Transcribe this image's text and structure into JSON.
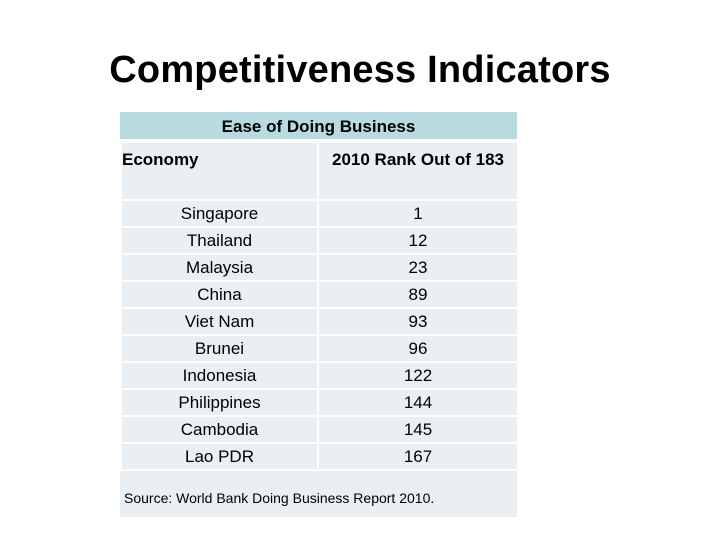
{
  "title": "Competitiveness Indicators",
  "table": {
    "caption": "Ease of Doing Business",
    "headers": [
      "Economy",
      "2010 Rank Out of 183"
    ],
    "rows": [
      {
        "economy": "Singapore",
        "rank": "1"
      },
      {
        "economy": "Thailand",
        "rank": "12"
      },
      {
        "economy": "Malaysia",
        "rank": "23"
      },
      {
        "economy": "China",
        "rank": "89"
      },
      {
        "economy": "Viet Nam",
        "rank": "93"
      },
      {
        "economy": "Brunei",
        "rank": "96"
      },
      {
        "economy": "Indonesia",
        "rank": "122"
      },
      {
        "economy": "Philippines",
        "rank": "144"
      },
      {
        "economy": "Cambodia",
        "rank": "145"
      },
      {
        "economy": "Lao PDR",
        "rank": "167"
      }
    ],
    "source": "Source: World Bank Doing Business Report 2010."
  },
  "colors": {
    "caption_background": "#b8dbe0",
    "cell_background": "#e9eff3",
    "cell_border": "#ffffff"
  }
}
